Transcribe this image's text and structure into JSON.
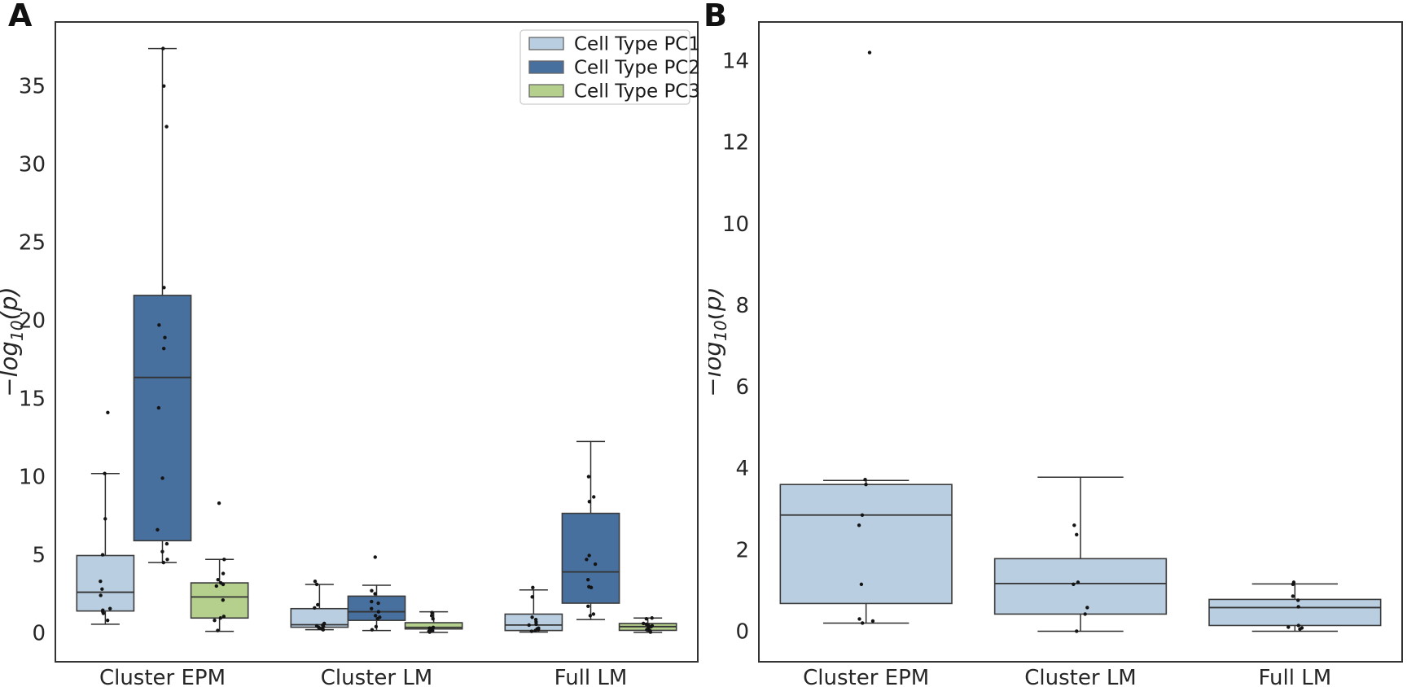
{
  "figure": {
    "panels": [
      {
        "label": "A"
      },
      {
        "label": "B"
      }
    ]
  },
  "colors": {
    "pc1": "#b9cee0",
    "pc2": "#48709e",
    "pc3": "#b4d08c",
    "box_edge": "#3b3b3b",
    "spine": "#333333",
    "point": "#141414",
    "text": "#262626",
    "legend_border": "#cccccc"
  },
  "chart_data": [
    {
      "type": "box",
      "panel": "A",
      "categories": [
        "Cluster EPM",
        "Cluster LM",
        "Full LM"
      ],
      "ylabel": {
        "pre": "−log",
        "sub": "10",
        "post": "(p)"
      },
      "ylim": [
        -1.85,
        39.1
      ],
      "yticks": [
        0,
        5,
        10,
        15,
        20,
        25,
        30,
        35
      ],
      "grid": false,
      "legend": {
        "position": "upper right",
        "entries": [
          "Cell Type PC1",
          "Cell Type PC2",
          "Cell Type PC3"
        ]
      },
      "series": [
        {
          "name": "Cell Type PC1",
          "color": "#b9cee0",
          "boxes": [
            {
              "category": "Cluster EPM",
              "whislo": 0.55,
              "q1": 1.4,
              "med": 2.6,
              "q3": 4.95,
              "whishi": 10.2,
              "points": [
                14.1,
                10.2,
                7.3,
                5.0,
                3.3,
                2.8,
                2.4,
                1.55,
                1.45,
                1.35,
                1.25,
                0.8
              ]
            },
            {
              "category": "Cluster LM",
              "whislo": 0.2,
              "q1": 0.36,
              "med": 0.52,
              "q3": 1.55,
              "whishi": 3.1,
              "points": [
                3.3,
                3.1,
                1.8,
                1.6,
                0.6,
                0.5,
                0.45,
                0.4,
                0.35,
                0.3,
                0.25,
                0.2
              ]
            },
            {
              "category": "Full LM",
              "whislo": 0.05,
              "q1": 0.15,
              "med": 0.5,
              "q3": 1.2,
              "whishi": 2.75,
              "points": [
                2.9,
                2.3,
                1.0,
                0.85,
                0.7,
                0.55,
                0.5,
                0.3,
                0.25,
                0.2,
                0.15,
                0.1
              ]
            }
          ]
        },
        {
          "name": "Cell Type PC2",
          "color": "#48709e",
          "boxes": [
            {
              "category": "Cluster EPM",
              "whislo": 4.5,
              "q1": 5.9,
              "med": 16.35,
              "q3": 21.6,
              "whishi": 37.4,
              "points": [
                37.4,
                35.0,
                32.4,
                22.1,
                19.7,
                18.9,
                18.2,
                14.4,
                9.9,
                6.6,
                5.7,
                5.2,
                4.7,
                4.5
              ]
            },
            {
              "category": "Cluster LM",
              "whislo": 0.15,
              "q1": 0.8,
              "med": 1.35,
              "q3": 2.35,
              "whishi": 3.05,
              "points": [
                4.85,
                2.7,
                2.5,
                2.0,
                1.9,
                1.55,
                1.35,
                1.1,
                1.0,
                0.9,
                0.4,
                0.2
              ]
            },
            {
              "category": "Full LM",
              "whislo": 0.85,
              "q1": 1.9,
              "med": 3.9,
              "q3": 7.65,
              "whishi": 12.25,
              "points": [
                10.0,
                8.7,
                8.4,
                4.95,
                4.7,
                4.4,
                3.4,
                2.95,
                2.9,
                1.7,
                1.2,
                1.1
              ]
            }
          ]
        },
        {
          "name": "Cell Type PC3",
          "color": "#b4d08c",
          "boxes": [
            {
              "category": "Cluster EPM",
              "whislo": 0.1,
              "q1": 0.95,
              "med": 2.3,
              "q3": 3.2,
              "whishi": 4.7,
              "points": [
                8.3,
                4.7,
                3.8,
                3.4,
                3.2,
                3.1,
                3.0,
                2.1,
                1.05,
                0.95,
                0.8,
                0.15
              ]
            },
            {
              "category": "Cluster LM",
              "whislo": 0.03,
              "q1": 0.25,
              "med": 0.35,
              "q3": 0.65,
              "whishi": 1.35,
              "points": [
                1.3,
                1.1,
                0.9,
                0.35,
                0.3,
                0.25,
                0.2,
                0.15,
                0.1,
                0.05
              ]
            },
            {
              "category": "Full LM",
              "whislo": 0.03,
              "q1": 0.16,
              "med": 0.4,
              "q3": 0.6,
              "whishi": 0.95,
              "points": [
                0.95,
                0.9,
                0.6,
                0.55,
                0.5,
                0.45,
                0.4,
                0.3,
                0.2,
                0.15,
                0.1,
                0.05
              ]
            }
          ]
        }
      ]
    },
    {
      "type": "box",
      "panel": "B",
      "categories": [
        "Cluster EPM",
        "Cluster LM",
        "Full LM"
      ],
      "ylabel": {
        "pre": "−log",
        "sub": "10",
        "post": "(p)"
      },
      "ylim": [
        -0.75,
        14.95
      ],
      "yticks": [
        0,
        2,
        4,
        6,
        8,
        10,
        12,
        14
      ],
      "grid": false,
      "series": [
        {
          "name": "Cell Type PC1",
          "color": "#b9cee0",
          "boxes": [
            {
              "category": "Cluster EPM",
              "whislo": 0.2,
              "q1": 0.68,
              "med": 2.85,
              "q3": 3.6,
              "whishi": 3.7,
              "points": [
                14.2,
                3.72,
                3.6,
                2.85,
                2.6,
                1.15,
                0.3,
                0.25,
                0.2
              ]
            },
            {
              "category": "Cluster LM",
              "whislo": 0.0,
              "q1": 0.42,
              "med": 1.17,
              "q3": 1.78,
              "whishi": 3.78,
              "points": [
                2.6,
                2.37,
                1.2,
                1.15,
                0.58,
                0.42,
                0.0
              ]
            },
            {
              "category": "Full LM",
              "whislo": 0.0,
              "q1": 0.14,
              "med": 0.58,
              "q3": 0.78,
              "whishi": 1.16,
              "points": [
                1.2,
                1.15,
                0.86,
                0.76,
                0.6,
                0.14,
                0.1,
                0.08,
                0.05
              ]
            }
          ]
        }
      ]
    }
  ]
}
